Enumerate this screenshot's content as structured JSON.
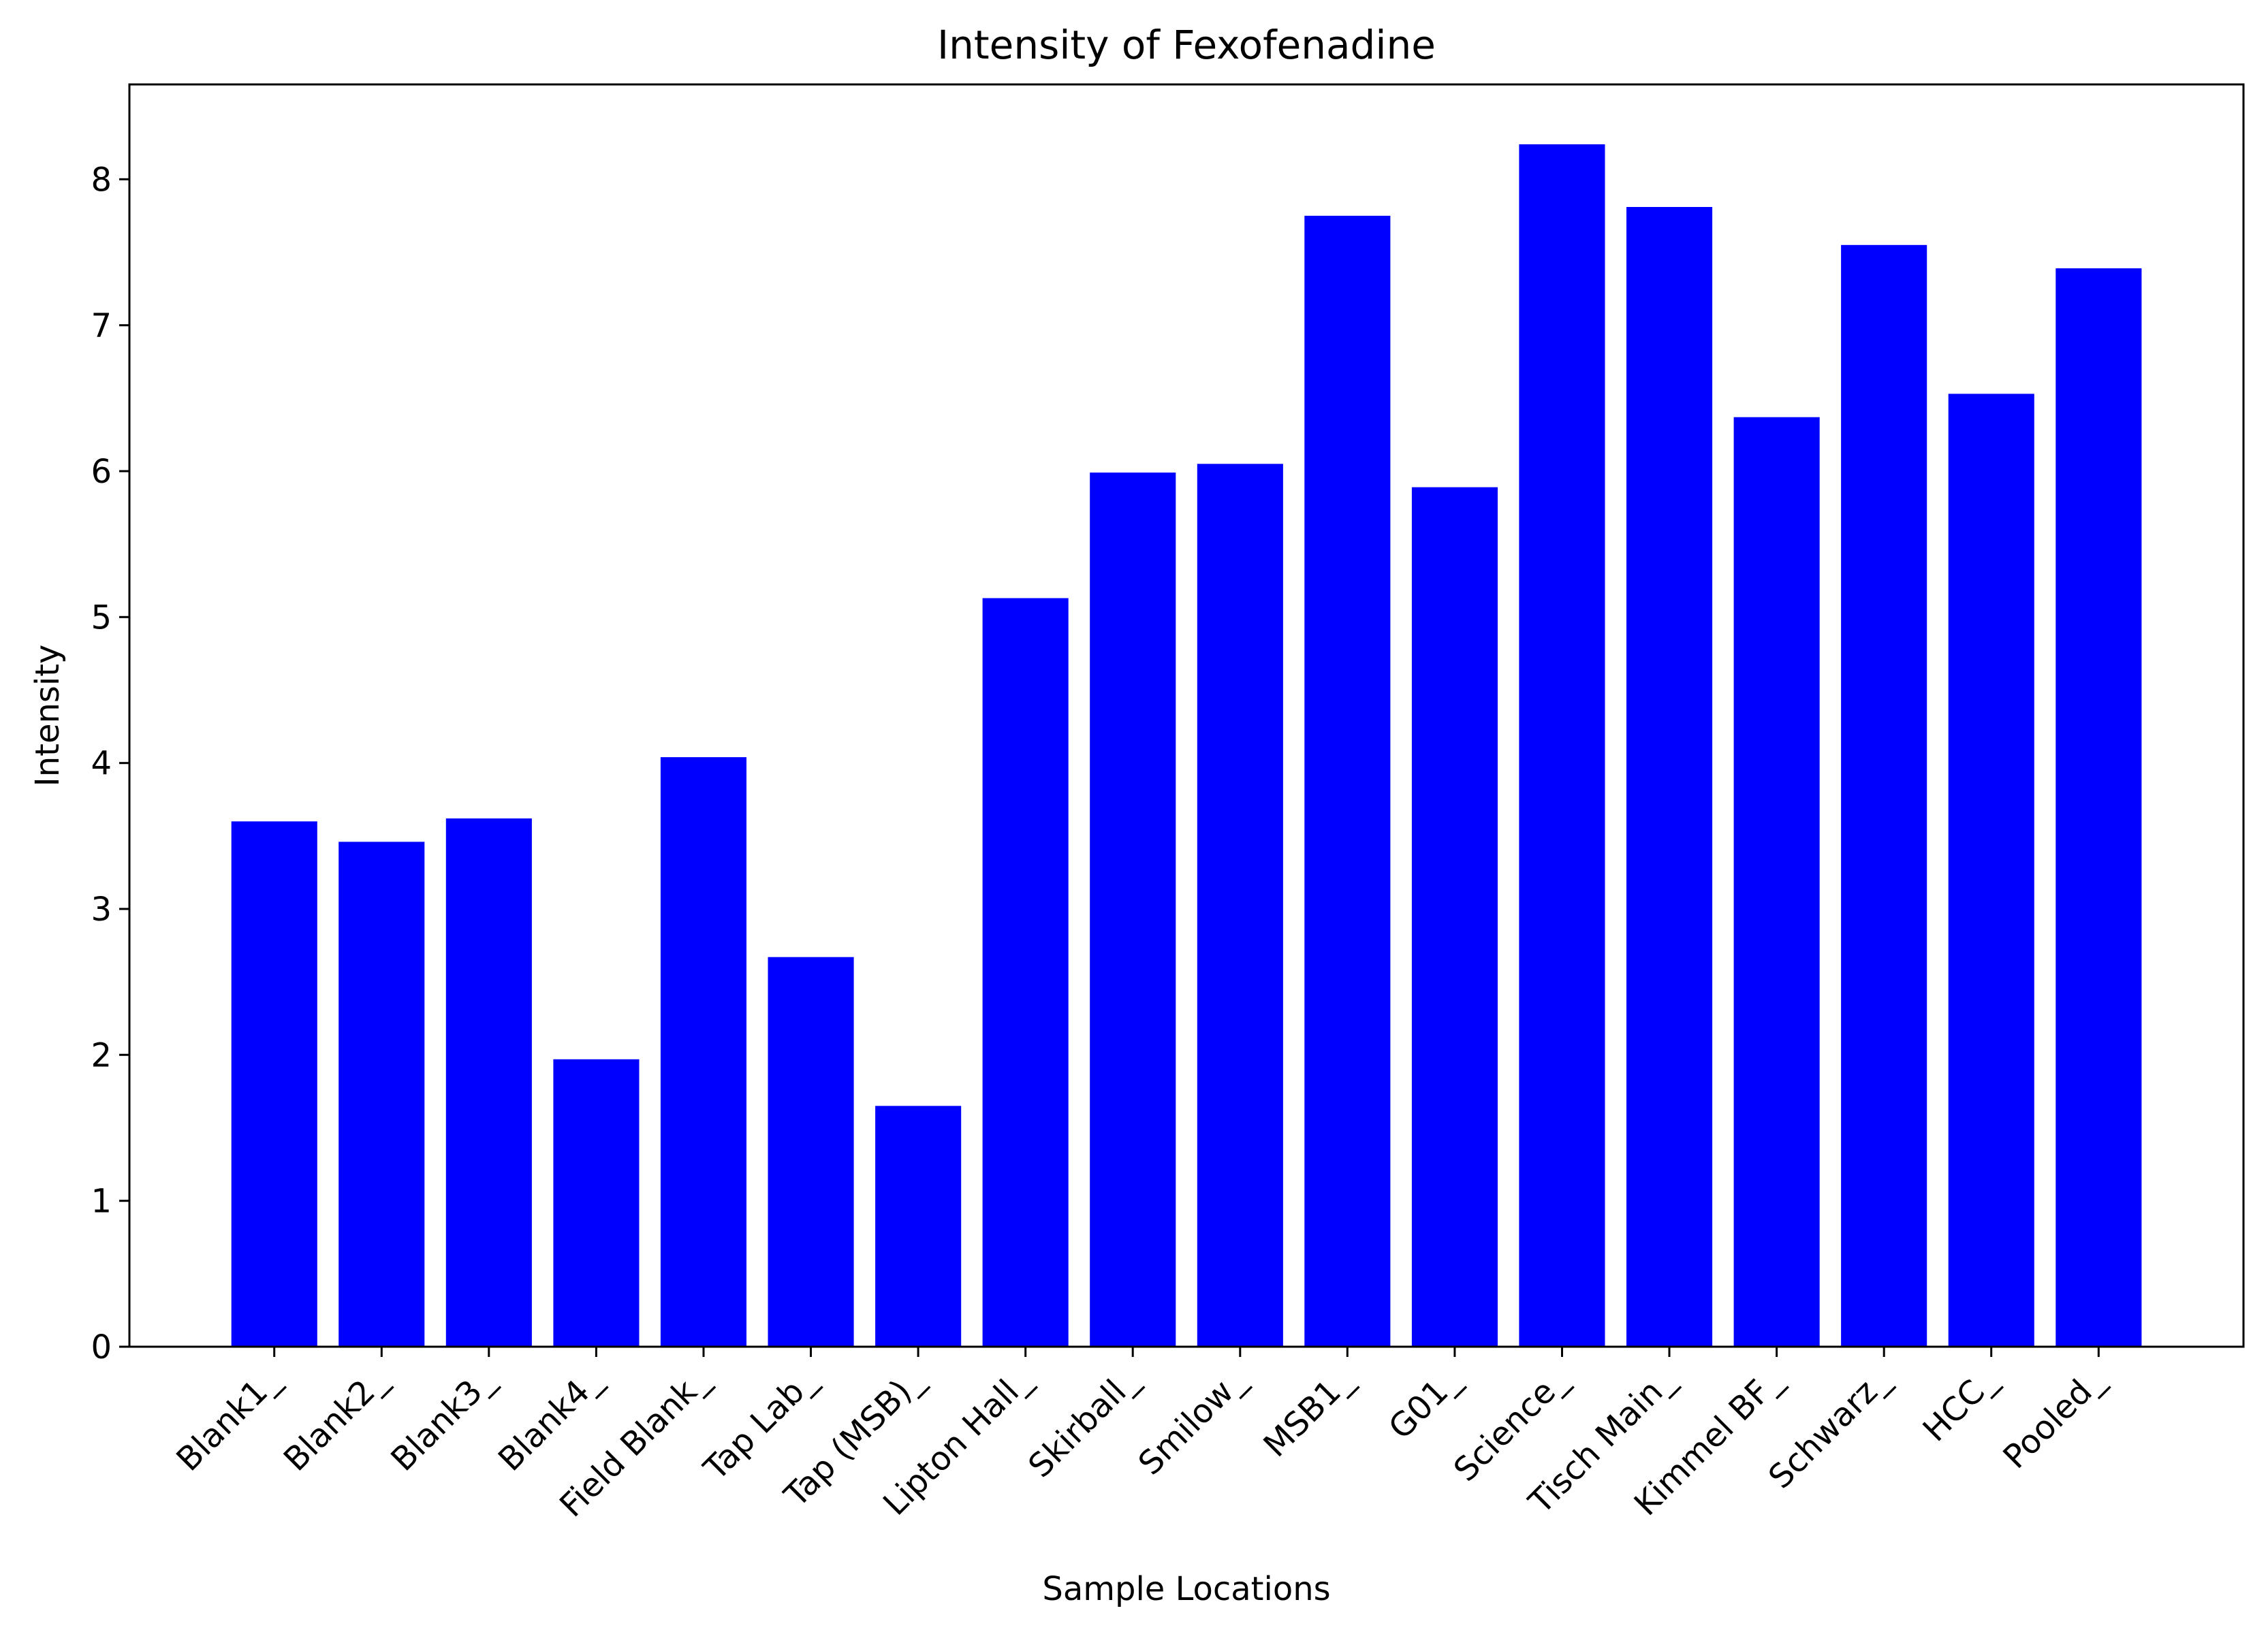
{
  "chart_data": {
    "type": "bar",
    "title": "Intensity of Fexofenadine",
    "xlabel": "Sample Locations",
    "ylabel": "Intensity",
    "categories": [
      "Blank1_",
      "Blank2_",
      "Blank3_",
      "Blank4_",
      "Field Blank_",
      "Tap Lab_",
      "Tap (MSB)_",
      "Lipton Hall_",
      "Skirball_",
      "Smilow_",
      "MSB1_",
      "G01_",
      "Science_",
      "Tisch Main_",
      "Kimmel BF_",
      "Schwarz_",
      "HCC_",
      "Pooled_"
    ],
    "values": [
      3.6,
      3.46,
      3.62,
      1.97,
      4.04,
      2.67,
      1.65,
      5.13,
      5.99,
      6.05,
      7.75,
      5.89,
      8.24,
      7.81,
      6.37,
      7.55,
      6.53,
      7.39
    ],
    "yticks": [
      "0",
      "1",
      "2",
      "3",
      "4",
      "5",
      "6",
      "7",
      "8"
    ],
    "ylim": [
      0,
      8.65
    ],
    "bar_color": "#0000ff",
    "grid": false,
    "legend": false
  }
}
